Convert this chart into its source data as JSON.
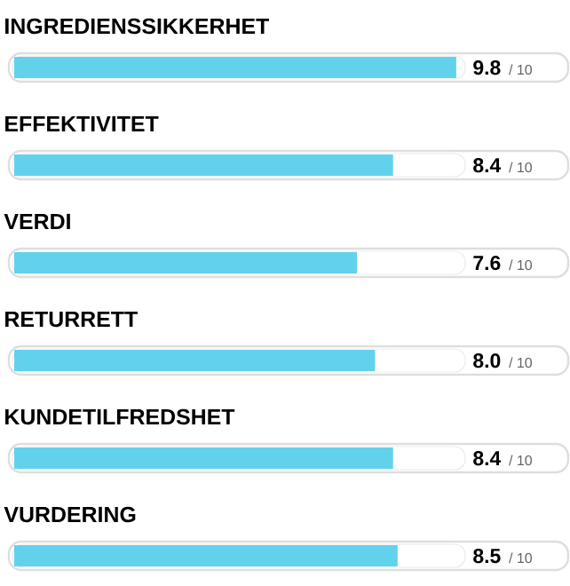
{
  "chart_data": {
    "type": "bar",
    "orientation": "horizontal",
    "categories": [
      "INGREDIENSSIKKERHET",
      "EFFEKTIVITET",
      "VERDI",
      "RETURRETT",
      "KUNDETILFREDSHET",
      "VURDERING"
    ],
    "values": [
      9.8,
      8.4,
      7.6,
      8.0,
      8.4,
      8.5
    ],
    "value_labels": [
      "9.8",
      "8.4",
      "7.6",
      "8.0",
      "8.4",
      "8.5"
    ],
    "annotations": [
      "/ 10",
      "/ 10",
      "/ 10",
      "/ 10",
      "/ 10",
      "/ 10"
    ],
    "color": "#62d2ec",
    "xlim": [
      0,
      10
    ]
  }
}
